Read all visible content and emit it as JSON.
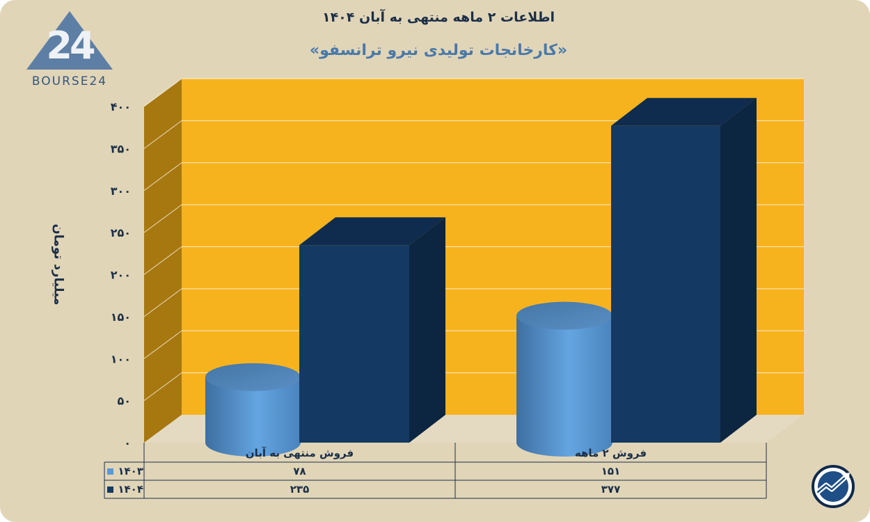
{
  "title": "اطلاعات ۲ ماهه منتهی به آبان ۱۴۰۴",
  "subtitle": "«کارخانجات تولیدی نیرو ترانسفو»",
  "logo_text": "BOURSE24",
  "colors": {
    "background": "#e1d5b8",
    "plot_back": "#f7b31e",
    "plot_side": "#a7780f",
    "series_1403": "#5a9ad6",
    "series_1404": "#143a63"
  },
  "chart_data": {
    "type": "bar",
    "title": "اطلاعات ۲ ماهه منتهی به آبان ۱۴۰۴",
    "subtitle": "«کارخانجات تولیدی نیرو ترانسفو»",
    "ylabel": "میلیارد تومان",
    "xlabel": "",
    "ylim": [
      0,
      400
    ],
    "yticks": [
      0,
      50,
      100,
      150,
      200,
      250,
      300,
      350,
      400
    ],
    "ytick_labels": [
      "۰",
      "۵۰",
      "۱۰۰",
      "۱۵۰",
      "۲۰۰",
      "۲۵۰",
      "۳۰۰",
      "۳۵۰",
      "۴۰۰"
    ],
    "categories": [
      "فروش منتهی به  آبان",
      "فروش ۲  ماهه"
    ],
    "series": [
      {
        "name": "۱۴۰۳",
        "values": [
          78,
          151
        ],
        "labels": [
          "۷۸",
          "۱۵۱"
        ],
        "shape": "cylinder",
        "color": "#5a9ad6"
      },
      {
        "name": "۱۴۰۴",
        "values": [
          235,
          377
        ],
        "labels": [
          "۲۳۵",
          "۳۷۷"
        ],
        "shape": "box",
        "color": "#143a63"
      }
    ],
    "grid": true,
    "legend": "data-table"
  }
}
